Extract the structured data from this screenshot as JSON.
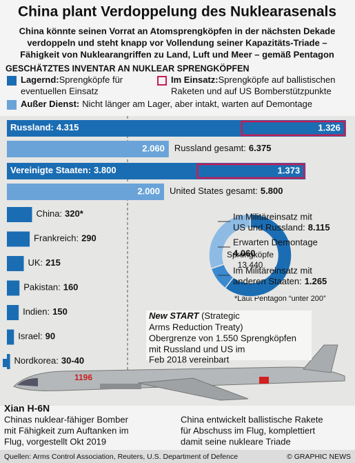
{
  "title": "China plant Verdoppelung des Nuklearasenals",
  "subtitle": [
    "China könnte seinen Vorrat an Atomsprengköpfen in der nächsten Dekade",
    "verdoppeln und steht knapp vor Vollendung seiner Kapazitäts-Triade –",
    "Fähigkeit von Nuklearangriffen zu Land, Luft und Meer – gemäß Pentagon"
  ],
  "chart_data": {
    "type": "bar",
    "title": "Geschätztes Inventar an Nuklear Sprengköpfen",
    "legend": [
      {
        "name": "Lagernd:",
        "text": [
          "Sprengköpfe für",
          "eventuellen Einsatz"
        ],
        "color": "#1b6db3"
      },
      {
        "name": "Im Einsatz:",
        "text": [
          "Sprengköpfe auf ballistischen",
          "Raketen und auf US Bomberstützpunkte"
        ],
        "color": "#c41e55"
      },
      {
        "name": "Außer Dienst:",
        "text": [
          "Nicht länger am Lager, aber intakt, warten auf Demontage"
        ],
        "color": "#6aa3d8"
      }
    ],
    "major": [
      {
        "name": "Russland:",
        "stored": 4315,
        "stored_label": "4.315",
        "deployed": 1326,
        "deployed_label": "1.326",
        "retired": 2060,
        "retired_label": "2.060",
        "total_name": "Russland gesamt:",
        "total": 6375,
        "total_label": "6.375"
      },
      {
        "name": "Vereinigte Staaten:",
        "stored": 3800,
        "stored_label": "3.800",
        "deployed": 1373,
        "deployed_label": "1.373",
        "retired": 2000,
        "retired_label": "2.000",
        "total_name": "United States gesamt:",
        "total": 5800,
        "total_label": "5.800"
      }
    ],
    "countries": [
      {
        "name": "China:",
        "value": 320,
        "value_label": "320*"
      },
      {
        "name": "Frankreich:",
        "value": 290,
        "value_label": "290"
      },
      {
        "name": "UK:",
        "value": 215,
        "value_label": "215"
      },
      {
        "name": "Pakistan:",
        "value": 160,
        "value_label": "160"
      },
      {
        "name": "Indien:",
        "value": 150,
        "value_label": "150"
      },
      {
        "name": "Israel:",
        "value": 90,
        "value_label": "90"
      },
      {
        "name": "Nordkorea:",
        "values": [
          30,
          40
        ],
        "value_label": "30-40"
      }
    ],
    "note": "*Laut Pentagon “unter 200”",
    "total": {
      "name": [
        "Gesamte",
        "Sprengköpfe"
      ],
      "value": 13440,
      "value_label": "13.440",
      "segments": [
        {
          "name": [
            "Im Militäreinsatz mit",
            "US und Russland:"
          ],
          "value": 8115,
          "value_label": "8.115",
          "color": "#1b6db3"
        },
        {
          "name": [
            "Im Militäreinsatz mit",
            "anderen Staaten:"
          ],
          "value": 1265,
          "value_label": "1.265",
          "color": "#3b8ad0"
        },
        {
          "name": [
            "Erwarten Demontage",
            ""
          ],
          "value": 4060,
          "value_label": "4.060",
          "color": "#8dbbe4"
        }
      ]
    }
  },
  "treaty": {
    "title": "New START",
    "title_rest": " (Strategic",
    "text": [
      "Arms Reduction Treaty)",
      "Obergrenze von 1.550 Sprengköpfen",
      "mit Russland und US im",
      "Feb 2018 vereinbart"
    ]
  },
  "plane_number": "1196",
  "plane": {
    "title": "Xian H-6N",
    "text": [
      "Chinas nuklear-fähiger Bomber",
      "mit Fähigkeit zum Auftanken im",
      "Flug, vorgestellt Okt 2019"
    ]
  },
  "missile": {
    "text": [
      "China entwickelt ballistische Rakete",
      "für Abschuss im Flug, komplettiert",
      "damit seine nukleare Triade"
    ]
  },
  "sources": "Quellen: Arms Control Association, Reuters, U.S. Department of Defence",
  "credit": "© GRAPHIC NEWS"
}
